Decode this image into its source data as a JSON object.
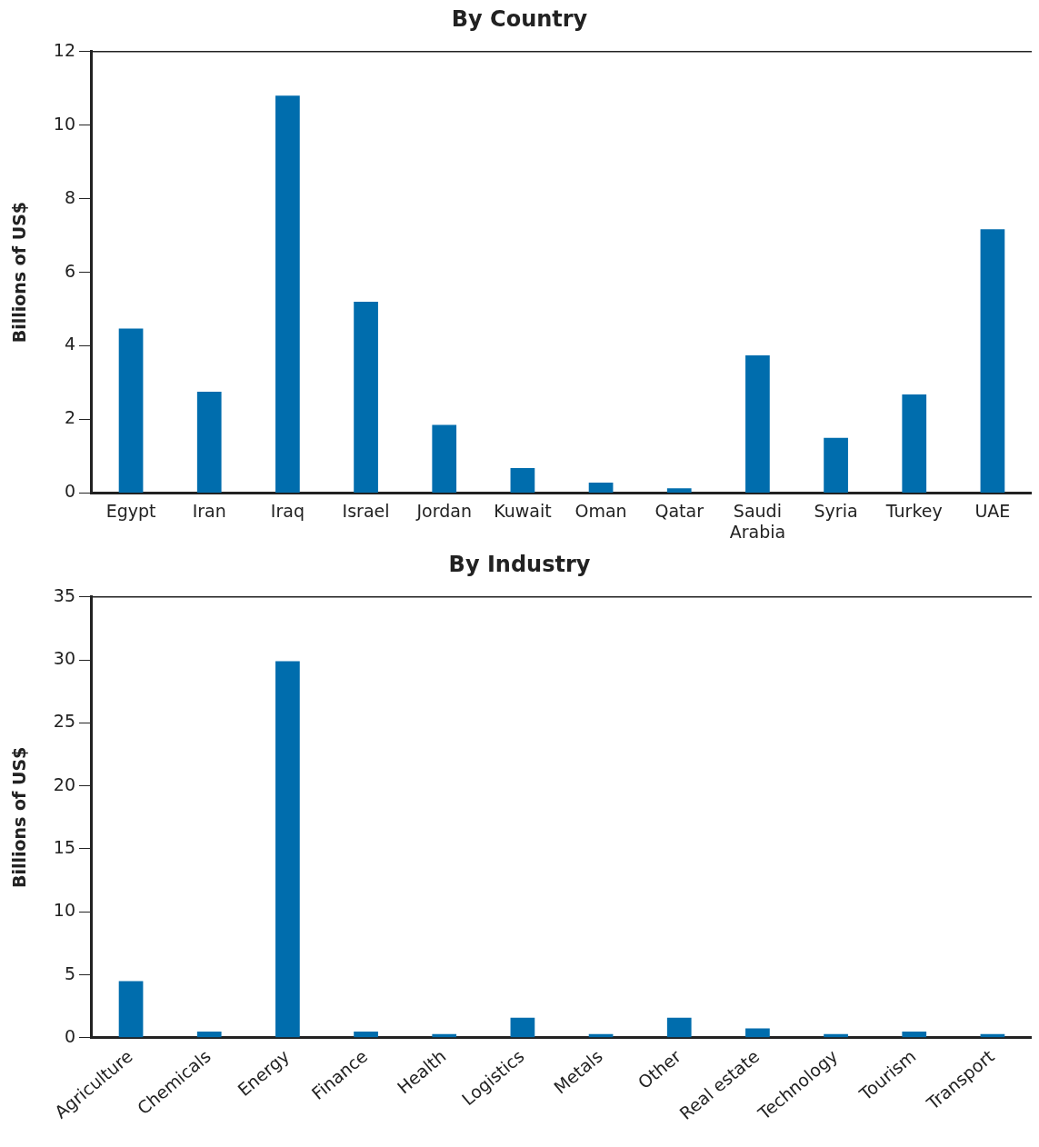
{
  "chart_data": [
    {
      "type": "bar",
      "title": "By Country",
      "ylabel": "Billions of US$",
      "categories": [
        "Egypt",
        "Iran",
        "Iraq",
        "Israel",
        "Jordan",
        "Kuwait",
        "Oman",
        "Qatar",
        "Saudi Arabia",
        "Syria",
        "Turkey",
        "UAE"
      ],
      "values": [
        4.47,
        2.75,
        10.8,
        5.2,
        1.85,
        0.68,
        0.28,
        0.13,
        3.74,
        1.5,
        2.68,
        7.17
      ],
      "color": "#006dad",
      "ylim": [
        0,
        12
      ],
      "yticks": [
        0,
        2,
        4,
        6,
        8,
        10,
        12
      ],
      "grid": false,
      "legend": false
    },
    {
      "type": "bar",
      "title": "By Industry",
      "ylabel": "Billions of US$",
      "categories": [
        "Agriculture",
        "Chemicals",
        "Energy",
        "Finance",
        "Health",
        "Logistics",
        "Metals",
        "Other",
        "Real estate",
        "Technology",
        "Tourism",
        "Transport"
      ],
      "values": [
        4.5,
        0.5,
        29.9,
        0.5,
        0.3,
        1.6,
        0.3,
        1.6,
        0.75,
        0.3,
        0.5,
        0.3
      ],
      "color": "#006dad",
      "ylim": [
        0,
        35
      ],
      "yticks": [
        0,
        5,
        10,
        15,
        20,
        25,
        30,
        35
      ],
      "grid": false,
      "legend": false
    }
  ]
}
